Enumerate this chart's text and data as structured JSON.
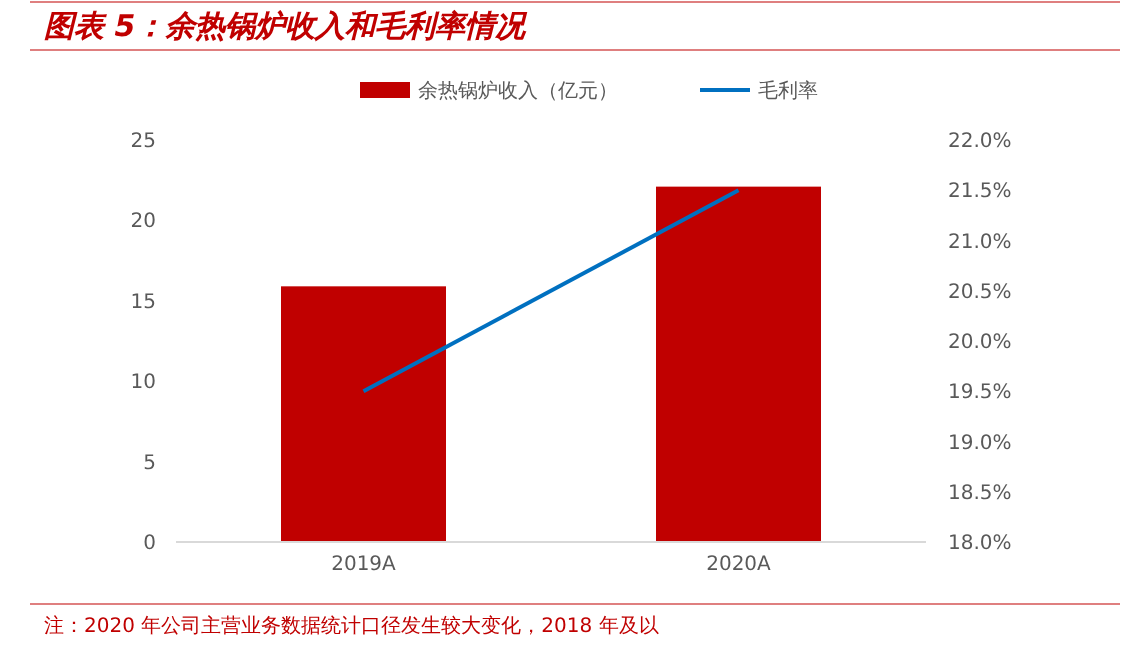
{
  "chart_data": {
    "type": "bar",
    "title": "图表 5：余热锅炉收入和毛利率情况",
    "categories": [
      "2019A",
      "2020A"
    ],
    "series": [
      {
        "name": "余热锅炉收入（亿元）",
        "color": "#c00000",
        "values": [
          15.9,
          22.1
        ]
      },
      {
        "name": "毛利率",
        "type": "line",
        "axis": "y2",
        "color": "#0070c0",
        "values": [
          19.5,
          21.5
        ]
      }
    ],
    "ylim": [
      0,
      25
    ],
    "yticks": [
      0,
      5,
      10,
      15,
      20,
      25
    ],
    "y2lim": [
      18,
      22
    ],
    "y2ticks": [
      {
        "value": 18,
        "label": "18.0%"
      },
      {
        "value": 18.5,
        "label": "18.5%"
      },
      {
        "value": 19,
        "label": "19.0%"
      },
      {
        "value": 19.5,
        "label": "19.5%"
      },
      {
        "value": 20,
        "label": "20.0%"
      },
      {
        "value": 20.5,
        "label": "20.5%"
      },
      {
        "value": 21,
        "label": "21.0%"
      },
      {
        "value": 21.5,
        "label": "21.5%"
      },
      {
        "value": 22,
        "label": "22.0%"
      }
    ],
    "legend": "top",
    "grid": false,
    "annotations": [
      "注：2020 年公司主营业务数据统计口径发生较大变化，2018 年及以"
    ]
  }
}
